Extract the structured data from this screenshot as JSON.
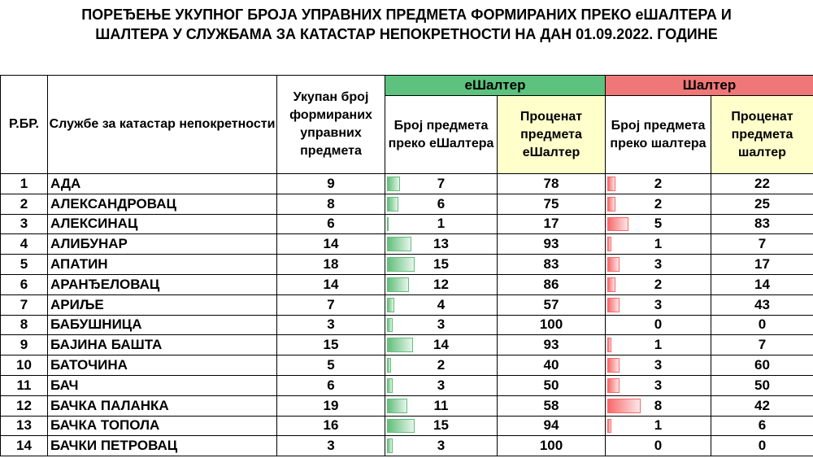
{
  "title": {
    "line1": "ПОРЕЂЕЊЕ УКУПНОГ БРОЈА УПРАВНИХ ПРЕДМЕТА ФОРМИРАНИХ ПРЕКО еШАЛТЕРА И",
    "line2": "ШАЛТЕРА У СЛУЖБАМА ЗА КАТАСТАР НЕПОКРЕТНОСТИ НА ДАН 01.09.2022. ГОДИНЕ"
  },
  "headers": {
    "rbr": "Р.БР.",
    "office": "Службе за катастар непокретности",
    "total": "Укупан број формираних управних предмета",
    "group_e": "еШалтер",
    "group_s": "Шалтер",
    "e_count": "Број предмета преко еШалтера",
    "e_pct": "Проценат предмета еШалтер",
    "s_count": "Број предмета преко шалтера",
    "s_pct": "Проценат предмета шалтер"
  },
  "colors": {
    "green_header": "#5cc27d",
    "red_header": "#f07777",
    "yellow_header": "#ffffcc",
    "green_bar": "#63be7b",
    "red_bar": "#f8696b"
  },
  "rows": [
    {
      "rbr": "1",
      "name": "АДА",
      "total": "9",
      "e_count": "7",
      "e_pct": "78",
      "s_count": "2",
      "s_pct": "22"
    },
    {
      "rbr": "2",
      "name": "АЛЕКСАНДРОВАЦ",
      "total": "8",
      "e_count": "6",
      "e_pct": "75",
      "s_count": "2",
      "s_pct": "25"
    },
    {
      "rbr": "3",
      "name": "АЛЕКСИНАЦ",
      "total": "6",
      "e_count": "1",
      "e_pct": "17",
      "s_count": "5",
      "s_pct": "83"
    },
    {
      "rbr": "4",
      "name": "АЛИБУНАР",
      "total": "14",
      "e_count": "13",
      "e_pct": "93",
      "s_count": "1",
      "s_pct": "7"
    },
    {
      "rbr": "5",
      "name": "АПАТИН",
      "total": "18",
      "e_count": "15",
      "e_pct": "83",
      "s_count": "3",
      "s_pct": "17"
    },
    {
      "rbr": "6",
      "name": "АРАНЂЕЛОВАЦ",
      "total": "14",
      "e_count": "12",
      "e_pct": "86",
      "s_count": "2",
      "s_pct": "14"
    },
    {
      "rbr": "7",
      "name": "АРИЉЕ",
      "total": "7",
      "e_count": "4",
      "e_pct": "57",
      "s_count": "3",
      "s_pct": "43"
    },
    {
      "rbr": "8",
      "name": "БАБУШНИЦА",
      "total": "3",
      "e_count": "3",
      "e_pct": "100",
      "s_count": "0",
      "s_pct": "0"
    },
    {
      "rbr": "9",
      "name": "БАЈИНА БАШТА",
      "total": "15",
      "e_count": "14",
      "e_pct": "93",
      "s_count": "1",
      "s_pct": "7"
    },
    {
      "rbr": "10",
      "name": "БАТОЧИНА",
      "total": "5",
      "e_count": "2",
      "e_pct": "40",
      "s_count": "3",
      "s_pct": "60"
    },
    {
      "rbr": "11",
      "name": "БАЧ",
      "total": "6",
      "e_count": "3",
      "e_pct": "50",
      "s_count": "3",
      "s_pct": "50"
    },
    {
      "rbr": "12",
      "name": "БАЧКА ПАЛАНКА",
      "total": "19",
      "e_count": "11",
      "e_pct": "58",
      "s_count": "8",
      "s_pct": "42"
    },
    {
      "rbr": "13",
      "name": "БАЧКА ТОПОЛА",
      "total": "16",
      "e_count": "15",
      "e_pct": "94",
      "s_count": "1",
      "s_pct": "6"
    },
    {
      "rbr": "14",
      "name": "БАЧКИ ПЕТРОВАЦ",
      "total": "3",
      "e_count": "3",
      "e_pct": "100",
      "s_count": "0",
      "s_pct": "0"
    }
  ]
}
